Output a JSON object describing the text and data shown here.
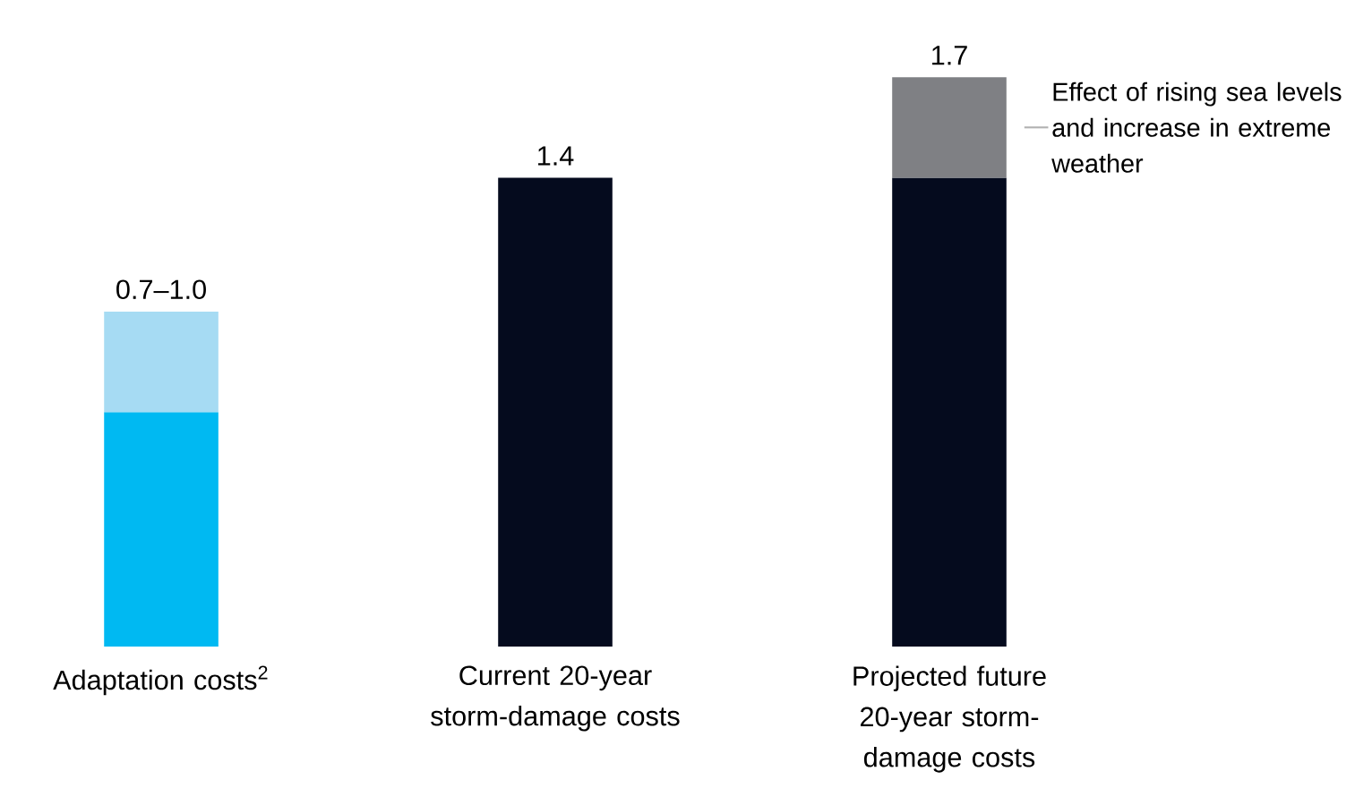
{
  "chart_data": {
    "type": "bar",
    "stacked": true,
    "categories": [
      "Adaptation costs$^{2}$",
      "Current 20-year storm-damage costs",
      "Projected future 20-year storm-damage costs"
    ],
    "series": [
      {
        "colors": [
          "#00b9f2",
          "#050b1e",
          "#050b1e"
        ],
        "values": [
          0.7,
          1.4,
          1.4
        ],
        "value_labels": [
          null,
          "1.4",
          null
        ]
      },
      {
        "colors": [
          "#a6dbf3",
          "#7f8084",
          "#7f8084"
        ],
        "values": [
          0.3,
          null,
          0.3
        ]
      }
    ],
    "totals": [
      "0.7–1.0",
      null,
      "1.7"
    ],
    "annotations": [
      "Effect of rising sea levels and increase in extreme weather"
    ]
  }
}
